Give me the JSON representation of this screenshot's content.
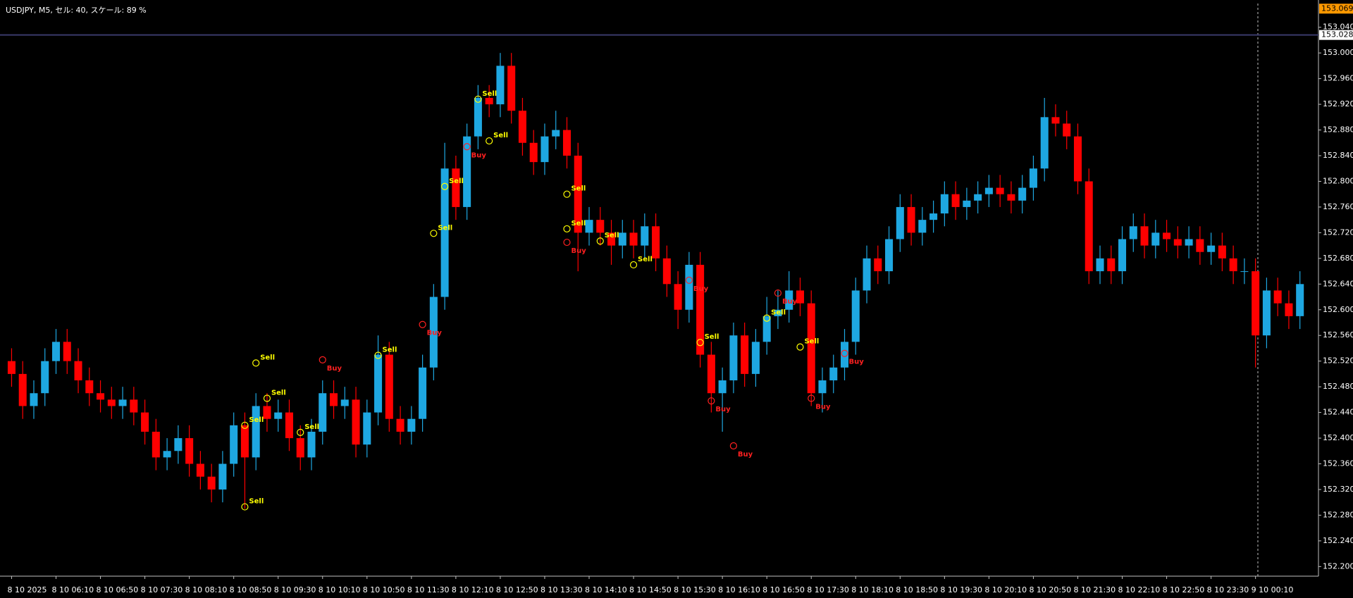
{
  "chart_data": {
    "type": "candlestick",
    "title": "USDJPY, M5, セル: 40, スケール: 89 %",
    "up_color": "#1ea7e1",
    "down_color": "#ff0000",
    "signal_colors": {
      "Sell": "#ffff00",
      "Buy": "#ff2020"
    },
    "ylim": [
      152.185,
      153.077
    ],
    "yticks": [
      {
        "value": 153.04,
        "label": "153.040"
      },
      {
        "value": 153.0,
        "label": "153.000"
      },
      {
        "value": 152.96,
        "label": "152.960"
      },
      {
        "value": 152.92,
        "label": "152.920"
      },
      {
        "value": 152.88,
        "label": "152.880"
      },
      {
        "value": 152.84,
        "label": "152.840"
      },
      {
        "value": 152.8,
        "label": "152.800"
      },
      {
        "value": 152.76,
        "label": "152.760"
      },
      {
        "value": 152.72,
        "label": "152.720"
      },
      {
        "value": 152.68,
        "label": "152.680"
      },
      {
        "value": 152.64,
        "label": "152.640"
      },
      {
        "value": 152.6,
        "label": "152.600"
      },
      {
        "value": 152.56,
        "label": "152.560"
      },
      {
        "value": 152.52,
        "label": "152.520"
      },
      {
        "value": 152.48,
        "label": "152.480"
      },
      {
        "value": 152.44,
        "label": "152.440"
      },
      {
        "value": 152.4,
        "label": "152.400"
      },
      {
        "value": 152.36,
        "label": "152.360"
      },
      {
        "value": 152.32,
        "label": "152.320"
      },
      {
        "value": 152.28,
        "label": "152.280"
      },
      {
        "value": 152.24,
        "label": "152.240"
      },
      {
        "value": 152.2,
        "label": "152.200"
      }
    ],
    "bid_line": {
      "value": 153.028,
      "label": "153.028"
    },
    "ask_label": {
      "value": 153.069,
      "label": "153.069"
    },
    "categories": [
      "8 10 2025",
      null,
      null,
      null,
      "8 10 06:10",
      null,
      null,
      null,
      "8 10 06:50",
      null,
      null,
      null,
      "8 10 07:30",
      null,
      null,
      null,
      "8 10 08:10",
      null,
      null,
      null,
      "8 10 08:50",
      null,
      null,
      null,
      "8 10 09:30",
      null,
      null,
      null,
      "8 10 10:10",
      null,
      null,
      null,
      "8 10 10:50",
      null,
      null,
      null,
      "8 10 11:30",
      null,
      null,
      null,
      "8 10 12:10",
      null,
      null,
      null,
      "8 10 12:50",
      null,
      null,
      null,
      "8 10 13:30",
      null,
      null,
      null,
      "8 10 14:10",
      null,
      null,
      null,
      "8 10 14:50",
      null,
      null,
      null,
      "8 10 15:30",
      null,
      null,
      null,
      "8 10 16:10",
      null,
      null,
      null,
      "8 10 16:50",
      null,
      null,
      null,
      "8 10 17:30",
      null,
      null,
      null,
      "8 10 18:10",
      null,
      null,
      null,
      "8 10 18:50",
      null,
      null,
      null,
      "8 10 19:30",
      null,
      null,
      null,
      "8 10 20:10",
      null,
      null,
      null,
      "8 10 20:50",
      null,
      null,
      null,
      "8 10 21:30",
      null,
      null,
      null,
      "8 10 22:10",
      null,
      null,
      null,
      "8 10 22:50",
      null,
      null,
      null,
      "8 10 23:30",
      null,
      null,
      null,
      "9 10 00:10",
      null,
      null,
      null,
      null
    ],
    "open": [
      152.52,
      152.5,
      152.45,
      152.47,
      152.52,
      152.55,
      152.52,
      152.49,
      152.47,
      152.46,
      152.45,
      152.46,
      152.44,
      152.41,
      152.37,
      152.38,
      152.4,
      152.36,
      152.34,
      152.32,
      152.36,
      152.42,
      152.37,
      152.45,
      152.43,
      152.44,
      152.4,
      152.37,
      152.41,
      152.47,
      152.45,
      152.46,
      152.39,
      152.44,
      152.53,
      152.43,
      152.41,
      152.43,
      152.51,
      152.62,
      152.82,
      152.76,
      152.87,
      152.93,
      152.92,
      152.98,
      152.91,
      152.86,
      152.83,
      152.87,
      152.88,
      152.84,
      152.72,
      152.74,
      152.72,
      152.7,
      152.72,
      152.7,
      152.73,
      152.68,
      152.64,
      152.6,
      152.67,
      152.53,
      152.47,
      152.49,
      152.56,
      152.5,
      152.55,
      152.59,
      152.6,
      152.63,
      152.61,
      152.47,
      152.49,
      152.51,
      152.55,
      152.63,
      152.68,
      152.66,
      152.71,
      152.76,
      152.72,
      152.74,
      152.75,
      152.78,
      152.76,
      152.77,
      152.78,
      152.79,
      152.78,
      152.77,
      152.79,
      152.82,
      152.9,
      152.89,
      152.87,
      152.8,
      152.66,
      152.68,
      152.66,
      152.71,
      152.73,
      152.7,
      152.72,
      152.71,
      152.7,
      152.71,
      152.69,
      152.7,
      152.68,
      152.66,
      152.66,
      152.56,
      152.63,
      152.61,
      152.59
    ],
    "high": [
      152.54,
      152.52,
      152.49,
      152.54,
      152.57,
      152.57,
      152.54,
      152.51,
      152.49,
      152.48,
      152.48,
      152.48,
      152.46,
      152.43,
      152.4,
      152.42,
      152.42,
      152.38,
      152.36,
      152.38,
      152.44,
      152.44,
      152.47,
      152.47,
      152.46,
      152.46,
      152.42,
      152.43,
      152.49,
      152.49,
      152.48,
      152.48,
      152.46,
      152.56,
      152.55,
      152.45,
      152.45,
      152.53,
      152.64,
      152.86,
      152.84,
      152.89,
      152.95,
      152.95,
      153.0,
      153.0,
      152.93,
      152.88,
      152.89,
      152.91,
      152.9,
      152.86,
      152.76,
      152.76,
      152.74,
      152.74,
      152.74,
      152.75,
      152.75,
      152.7,
      152.66,
      152.69,
      152.69,
      152.55,
      152.51,
      152.58,
      152.58,
      152.57,
      152.62,
      152.63,
      152.66,
      152.65,
      152.63,
      152.51,
      152.53,
      152.57,
      152.65,
      152.7,
      152.7,
      152.73,
      152.78,
      152.78,
      152.76,
      152.77,
      152.8,
      152.8,
      152.79,
      152.8,
      152.81,
      152.81,
      152.8,
      152.81,
      152.84,
      152.93,
      152.92,
      152.91,
      152.89,
      152.82,
      152.7,
      152.7,
      152.73,
      152.75,
      152.75,
      152.74,
      152.74,
      152.73,
      152.73,
      152.73,
      152.72,
      152.72,
      152.7,
      152.68,
      152.68,
      152.65,
      152.65,
      152.63,
      152.66
    ],
    "low": [
      152.48,
      152.43,
      152.43,
      152.45,
      152.5,
      152.5,
      152.47,
      152.45,
      152.44,
      152.43,
      152.43,
      152.42,
      152.39,
      152.35,
      152.35,
      152.36,
      152.34,
      152.32,
      152.3,
      152.3,
      152.34,
      152.29,
      152.35,
      152.41,
      152.41,
      152.38,
      152.35,
      152.35,
      152.39,
      152.43,
      152.43,
      152.37,
      152.37,
      152.42,
      152.41,
      152.39,
      152.39,
      152.41,
      152.49,
      152.6,
      152.74,
      152.74,
      152.85,
      152.9,
      152.9,
      152.89,
      152.84,
      152.81,
      152.81,
      152.85,
      152.82,
      152.66,
      152.7,
      152.7,
      152.67,
      152.68,
      152.68,
      152.68,
      152.66,
      152.62,
      152.57,
      152.58,
      152.51,
      152.44,
      152.41,
      152.47,
      152.48,
      152.48,
      152.53,
      152.57,
      152.58,
      152.59,
      152.45,
      152.44,
      152.47,
      152.49,
      152.53,
      152.61,
      152.64,
      152.64,
      152.69,
      152.7,
      152.7,
      152.72,
      152.73,
      152.74,
      152.74,
      152.75,
      152.76,
      152.76,
      152.75,
      152.75,
      152.77,
      152.8,
      152.87,
      152.85,
      152.78,
      152.64,
      152.64,
      152.64,
      152.64,
      152.69,
      152.68,
      152.68,
      152.69,
      152.68,
      152.68,
      152.67,
      152.67,
      152.66,
      152.64,
      152.64,
      152.51,
      152.54,
      152.59,
      152.57,
      152.57
    ],
    "close": [
      152.5,
      152.45,
      152.47,
      152.52,
      152.55,
      152.52,
      152.49,
      152.47,
      152.46,
      152.45,
      152.46,
      152.44,
      152.41,
      152.37,
      152.38,
      152.4,
      152.36,
      152.34,
      152.32,
      152.36,
      152.42,
      152.37,
      152.45,
      152.43,
      152.44,
      152.4,
      152.37,
      152.41,
      152.47,
      152.45,
      152.46,
      152.39,
      152.44,
      152.53,
      152.43,
      152.41,
      152.43,
      152.51,
      152.62,
      152.82,
      152.76,
      152.87,
      152.93,
      152.92,
      152.98,
      152.91,
      152.86,
      152.83,
      152.87,
      152.88,
      152.84,
      152.72,
      152.74,
      152.72,
      152.7,
      152.72,
      152.7,
      152.73,
      152.68,
      152.64,
      152.6,
      152.67,
      152.53,
      152.47,
      152.49,
      152.56,
      152.5,
      152.55,
      152.59,
      152.6,
      152.63,
      152.61,
      152.47,
      152.49,
      152.51,
      152.55,
      152.63,
      152.68,
      152.66,
      152.71,
      152.76,
      152.72,
      152.74,
      152.75,
      152.78,
      152.76,
      152.77,
      152.78,
      152.79,
      152.78,
      152.77,
      152.79,
      152.82,
      152.9,
      152.89,
      152.87,
      152.8,
      152.66,
      152.68,
      152.66,
      152.71,
      152.73,
      152.7,
      152.72,
      152.71,
      152.7,
      152.71,
      152.69,
      152.7,
      152.68,
      152.66,
      152.66,
      152.56,
      152.63,
      152.61,
      152.59,
      152.64
    ],
    "signals": [
      {
        "label": "Sell",
        "index": 22,
        "price": 152.517
      },
      {
        "label": "Sell",
        "index": 21,
        "price": 152.293
      },
      {
        "label": "Sell",
        "index": 23,
        "price": 152.462
      },
      {
        "label": "Sell",
        "index": 21,
        "price": 152.42
      },
      {
        "label": "Sell",
        "index": 26,
        "price": 152.409
      },
      {
        "label": "Buy",
        "index": 28,
        "price": 152.522
      },
      {
        "label": "Sell",
        "index": 33,
        "price": 152.529
      },
      {
        "label": "Buy",
        "index": 37,
        "price": 152.577
      },
      {
        "label": "Sell",
        "index": 38,
        "price": 152.719
      },
      {
        "label": "Sell",
        "index": 39,
        "price": 152.792
      },
      {
        "label": "Buy",
        "index": 41,
        "price": 152.854
      },
      {
        "label": "Sell",
        "index": 42,
        "price": 152.928
      },
      {
        "label": "Sell",
        "index": 43,
        "price": 152.863
      },
      {
        "label": "Sell",
        "index": 50,
        "price": 152.78
      },
      {
        "label": "Sell",
        "index": 50,
        "price": 152.726
      },
      {
        "label": "Buy",
        "index": 50,
        "price": 152.705
      },
      {
        "label": "Sell",
        "index": 53,
        "price": 152.707
      },
      {
        "label": "Sell",
        "index": 56,
        "price": 152.67
      },
      {
        "label": "Buy",
        "index": 61,
        "price": 152.646
      },
      {
        "label": "Sell",
        "index": 62,
        "price": 152.549
      },
      {
        "label": "Buy",
        "index": 63,
        "price": 152.458
      },
      {
        "label": "Buy",
        "index": 65,
        "price": 152.388
      },
      {
        "label": "Sell",
        "index": 68,
        "price": 152.587
      },
      {
        "label": "Buy",
        "index": 69,
        "price": 152.626
      },
      {
        "label": "Sell",
        "index": 71,
        "price": 152.542
      },
      {
        "label": "Buy",
        "index": 72,
        "price": 152.462
      },
      {
        "label": "Buy",
        "index": 75,
        "price": 152.532
      }
    ]
  }
}
